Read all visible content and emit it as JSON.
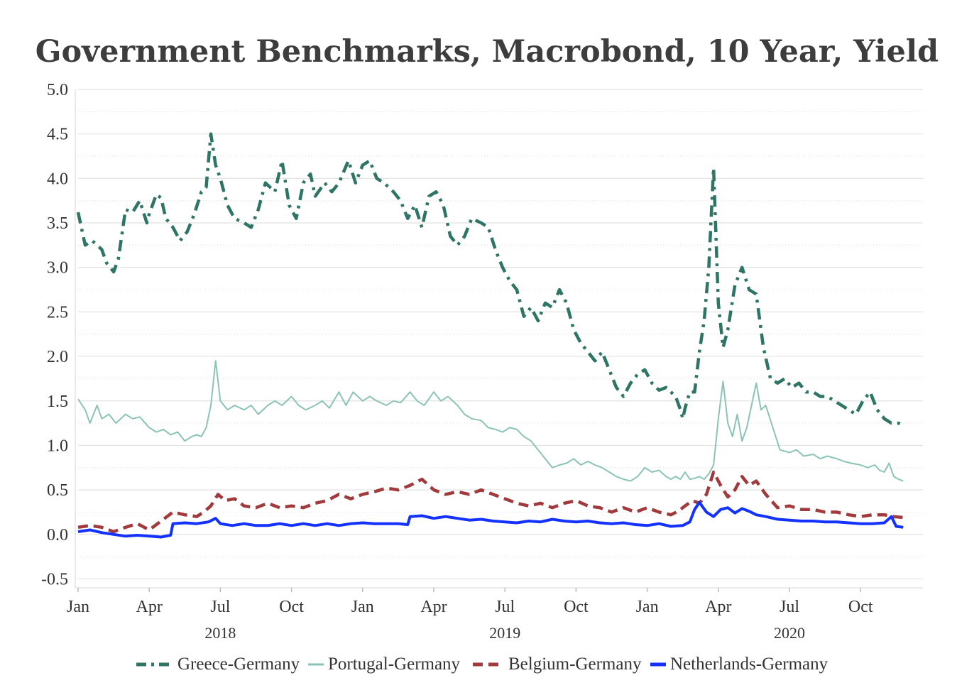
{
  "chart_data": {
    "type": "line",
    "title": "Government Benchmarks, Macrobond, 10 Year, Yield",
    "xlabel": "",
    "ylabel": "",
    "ylim": [
      -0.6,
      5.0
    ],
    "x_ticks": [
      "Jan",
      "Apr",
      "Jul",
      "Oct",
      "Jan",
      "Apr",
      "Jul",
      "Oct",
      "Jan",
      "Apr",
      "Jul",
      "Oct"
    ],
    "x_years": [
      "2018",
      "2019",
      "2020"
    ],
    "y_ticks": [
      "5.0",
      "4.5",
      "4.0",
      "3.5",
      "3.0",
      "2.5",
      "2.0",
      "1.5",
      "1.0",
      "0.5",
      "0.0",
      "-0.5"
    ],
    "grid": true,
    "legend_position": "bottom",
    "x_units": "months since Jan 2018",
    "series": [
      {
        "name": "Greece-Germany",
        "color": "#2e7566",
        "style": "dash-dot",
        "x": [
          0,
          0.3,
          0.6,
          1.0,
          1.2,
          1.5,
          1.7,
          2.0,
          2.3,
          2.6,
          2.9,
          3.0,
          3.3,
          3.5,
          3.7,
          4.0,
          4.3,
          4.6,
          4.9,
          5.2,
          5.4,
          5.6,
          5.8,
          6.0,
          6.3,
          6.6,
          7.0,
          7.3,
          7.6,
          7.9,
          8.3,
          8.6,
          8.9,
          9.2,
          9.5,
          9.8,
          10.0,
          10.4,
          10.7,
          11.0,
          11.4,
          11.7,
          12.0,
          12.3,
          12.6,
          12.9,
          13.3,
          13.6,
          13.9,
          14.2,
          14.5,
          14.8,
          15.1,
          15.4,
          15.7,
          16.0,
          16.3,
          16.6,
          17.0,
          17.3,
          17.6,
          17.9,
          18.2,
          18.5,
          18.8,
          19.1,
          19.4,
          19.7,
          20.0,
          20.3,
          20.6,
          20.9,
          21.2,
          21.5,
          21.8,
          22.1,
          22.4,
          22.7,
          23.0,
          23.3,
          23.6,
          23.9,
          24.2,
          24.5,
          24.8,
          25.0,
          25.2,
          25.4,
          25.5,
          25.6,
          25.8,
          26.0,
          26.2,
          26.4,
          26.6,
          26.8,
          27.0,
          27.2,
          27.4,
          27.7,
          28.0,
          28.3,
          28.6,
          28.9,
          29.2,
          29.5,
          29.8,
          30.1,
          30.4,
          30.7,
          31.0,
          31.3,
          31.6,
          31.9,
          32.2,
          32.5,
          32.8,
          33.1,
          33.4,
          33.7,
          34.0,
          34.3,
          34.6,
          34.8
        ],
        "values": [
          3.62,
          3.25,
          3.3,
          3.2,
          3.05,
          2.95,
          3.1,
          3.65,
          3.62,
          3.75,
          3.5,
          3.6,
          3.82,
          3.78,
          3.55,
          3.45,
          3.3,
          3.4,
          3.6,
          3.85,
          3.9,
          4.5,
          4.15,
          4.0,
          3.7,
          3.55,
          3.5,
          3.45,
          3.65,
          3.95,
          3.85,
          4.2,
          3.7,
          3.55,
          3.95,
          4.05,
          3.8,
          3.95,
          3.85,
          3.95,
          4.2,
          3.95,
          4.15,
          4.2,
          4.0,
          3.95,
          3.85,
          3.75,
          3.55,
          3.7,
          3.45,
          3.8,
          3.85,
          3.7,
          3.35,
          3.25,
          3.35,
          3.55,
          3.5,
          3.45,
          3.2,
          3.0,
          2.85,
          2.75,
          2.45,
          2.55,
          2.4,
          2.6,
          2.55,
          2.75,
          2.6,
          2.3,
          2.15,
          2.05,
          1.95,
          2.05,
          1.85,
          1.65,
          1.55,
          1.7,
          1.8,
          1.85,
          1.7,
          1.62,
          1.65,
          1.6,
          1.55,
          1.4,
          1.3,
          1.42,
          1.6,
          1.6,
          2.05,
          2.4,
          3.0,
          4.12,
          2.6,
          2.1,
          2.3,
          2.8,
          3.0,
          2.75,
          2.7,
          2.1,
          1.75,
          1.7,
          1.75,
          1.65,
          1.7,
          1.6,
          1.6,
          1.55,
          1.55,
          1.5,
          1.45,
          1.4,
          1.35,
          1.5,
          1.6,
          1.4,
          1.3,
          1.25,
          1.25,
          1.22
        ]
      },
      {
        "name": "Portugal-Germany",
        "color": "#8bc4b6",
        "style": "solid",
        "x": [
          0,
          0.3,
          0.5,
          0.8,
          1.0,
          1.3,
          1.6,
          2.0,
          2.3,
          2.6,
          3.0,
          3.3,
          3.6,
          3.9,
          4.2,
          4.5,
          4.8,
          5.0,
          5.2,
          5.4,
          5.6,
          5.8,
          6.0,
          6.3,
          6.6,
          7.0,
          7.3,
          7.6,
          8.0,
          8.3,
          8.6,
          9.0,
          9.3,
          9.6,
          10.0,
          10.3,
          10.6,
          11.0,
          11.3,
          11.6,
          12.0,
          12.3,
          12.6,
          13.0,
          13.3,
          13.6,
          14.0,
          14.3,
          14.6,
          15.0,
          15.3,
          15.6,
          16.0,
          16.3,
          16.6,
          17.0,
          17.3,
          17.6,
          17.9,
          18.2,
          18.5,
          18.8,
          19.1,
          19.4,
          19.7,
          20.0,
          20.3,
          20.6,
          20.9,
          21.2,
          21.5,
          21.8,
          22.1,
          22.4,
          22.7,
          23.0,
          23.3,
          23.6,
          23.9,
          24.2,
          24.5,
          24.8,
          25.0,
          25.2,
          25.4,
          25.6,
          25.8,
          26.0,
          26.2,
          26.4,
          26.6,
          26.8,
          27.0,
          27.2,
          27.4,
          27.6,
          27.8,
          28.0,
          28.2,
          28.4,
          28.6,
          28.8,
          29.0,
          29.3,
          29.6,
          30.0,
          30.3,
          30.6,
          31.0,
          31.3,
          31.6,
          32.0,
          32.3,
          32.6,
          33.0,
          33.3,
          33.6,
          33.8,
          34.0,
          34.2,
          34.4,
          34.6,
          34.8
        ],
        "values": [
          1.52,
          1.4,
          1.25,
          1.45,
          1.3,
          1.35,
          1.25,
          1.35,
          1.3,
          1.32,
          1.2,
          1.15,
          1.18,
          1.12,
          1.15,
          1.05,
          1.1,
          1.12,
          1.1,
          1.2,
          1.45,
          1.95,
          1.5,
          1.4,
          1.45,
          1.4,
          1.45,
          1.35,
          1.45,
          1.5,
          1.45,
          1.55,
          1.45,
          1.4,
          1.45,
          1.5,
          1.42,
          1.6,
          1.45,
          1.6,
          1.5,
          1.55,
          1.5,
          1.45,
          1.5,
          1.48,
          1.6,
          1.5,
          1.45,
          1.6,
          1.5,
          1.55,
          1.45,
          1.35,
          1.3,
          1.28,
          1.2,
          1.18,
          1.15,
          1.2,
          1.18,
          1.1,
          1.05,
          0.95,
          0.85,
          0.75,
          0.78,
          0.8,
          0.85,
          0.78,
          0.82,
          0.78,
          0.75,
          0.7,
          0.65,
          0.62,
          0.6,
          0.65,
          0.75,
          0.7,
          0.72,
          0.65,
          0.62,
          0.65,
          0.62,
          0.7,
          0.62,
          0.63,
          0.65,
          0.62,
          0.68,
          0.78,
          1.3,
          1.72,
          1.25,
          1.1,
          1.35,
          1.05,
          1.2,
          1.45,
          1.7,
          1.4,
          1.45,
          1.2,
          0.95,
          0.92,
          0.95,
          0.88,
          0.9,
          0.85,
          0.88,
          0.85,
          0.82,
          0.8,
          0.78,
          0.75,
          0.78,
          0.72,
          0.7,
          0.8,
          0.65,
          0.62,
          0.6
        ]
      },
      {
        "name": "Belgium-Germany",
        "color": "#a03a3c",
        "style": "dashed",
        "x": [
          0,
          0.5,
          1.0,
          1.5,
          2.0,
          2.5,
          3.0,
          3.5,
          4.0,
          4.5,
          5.0,
          5.3,
          5.6,
          5.9,
          6.2,
          6.6,
          7.0,
          7.5,
          8.0,
          8.5,
          9.0,
          9.5,
          10.0,
          10.5,
          11.0,
          11.5,
          12.0,
          12.5,
          13.0,
          13.5,
          14.0,
          14.5,
          15.0,
          15.5,
          16.0,
          16.5,
          17.0,
          17.5,
          18.0,
          18.5,
          19.0,
          19.5,
          20.0,
          20.5,
          21.0,
          21.5,
          22.0,
          22.5,
          23.0,
          23.5,
          24.0,
          24.5,
          25.0,
          25.3,
          25.6,
          25.9,
          26.2,
          26.5,
          26.8,
          27.1,
          27.4,
          27.7,
          28.0,
          28.3,
          28.6,
          29.0,
          29.5,
          30.0,
          30.5,
          31.0,
          31.5,
          32.0,
          32.5,
          33.0,
          33.5,
          34.0,
          34.4,
          34.8
        ],
        "values": [
          0.08,
          0.1,
          0.08,
          0.03,
          0.08,
          0.12,
          0.05,
          0.15,
          0.25,
          0.22,
          0.2,
          0.25,
          0.32,
          0.45,
          0.38,
          0.4,
          0.32,
          0.3,
          0.35,
          0.3,
          0.32,
          0.3,
          0.35,
          0.38,
          0.45,
          0.4,
          0.45,
          0.48,
          0.52,
          0.5,
          0.55,
          0.62,
          0.5,
          0.45,
          0.48,
          0.45,
          0.5,
          0.45,
          0.4,
          0.35,
          0.32,
          0.35,
          0.3,
          0.35,
          0.38,
          0.32,
          0.3,
          0.25,
          0.3,
          0.25,
          0.3,
          0.25,
          0.22,
          0.26,
          0.32,
          0.38,
          0.35,
          0.45,
          0.7,
          0.55,
          0.42,
          0.5,
          0.65,
          0.55,
          0.6,
          0.45,
          0.3,
          0.32,
          0.28,
          0.28,
          0.25,
          0.25,
          0.22,
          0.2,
          0.22,
          0.22,
          0.2,
          0.19
        ]
      },
      {
        "name": "Netherlands-Germany",
        "color": "#1432ff",
        "style": "solid",
        "x": [
          0,
          0.5,
          1.0,
          1.5,
          2.0,
          2.5,
          3.0,
          3.5,
          3.9,
          4.0,
          4.5,
          5.0,
          5.5,
          5.8,
          6.0,
          6.5,
          7.0,
          7.5,
          8.0,
          8.5,
          9.0,
          9.5,
          10.0,
          10.5,
          11.0,
          11.5,
          12.0,
          12.5,
          13.0,
          13.5,
          13.9,
          14.0,
          14.5,
          15.0,
          15.5,
          16.0,
          16.5,
          17.0,
          17.5,
          18.0,
          18.5,
          19.0,
          19.5,
          20.0,
          20.5,
          21.0,
          21.5,
          22.0,
          22.5,
          23.0,
          23.5,
          24.0,
          24.5,
          25.0,
          25.5,
          25.8,
          26.0,
          26.2,
          26.5,
          26.8,
          27.1,
          27.4,
          27.7,
          28.0,
          28.3,
          28.6,
          29.0,
          29.5,
          30.0,
          30.5,
          31.0,
          31.5,
          32.0,
          32.5,
          33.0,
          33.5,
          34.0,
          34.3,
          34.5,
          34.8
        ],
        "values": [
          0.03,
          0.05,
          0.02,
          0.0,
          -0.02,
          -0.01,
          -0.02,
          -0.03,
          -0.01,
          0.12,
          0.13,
          0.12,
          0.14,
          0.18,
          0.12,
          0.1,
          0.12,
          0.1,
          0.1,
          0.12,
          0.1,
          0.12,
          0.1,
          0.12,
          0.1,
          0.12,
          0.13,
          0.12,
          0.12,
          0.12,
          0.11,
          0.2,
          0.21,
          0.18,
          0.2,
          0.18,
          0.16,
          0.17,
          0.15,
          0.14,
          0.13,
          0.15,
          0.14,
          0.17,
          0.15,
          0.14,
          0.15,
          0.13,
          0.12,
          0.13,
          0.11,
          0.1,
          0.12,
          0.09,
          0.1,
          0.14,
          0.28,
          0.36,
          0.25,
          0.2,
          0.28,
          0.3,
          0.24,
          0.29,
          0.26,
          0.22,
          0.2,
          0.17,
          0.16,
          0.15,
          0.15,
          0.14,
          0.14,
          0.13,
          0.12,
          0.12,
          0.13,
          0.2,
          0.09,
          0.08
        ]
      }
    ]
  }
}
